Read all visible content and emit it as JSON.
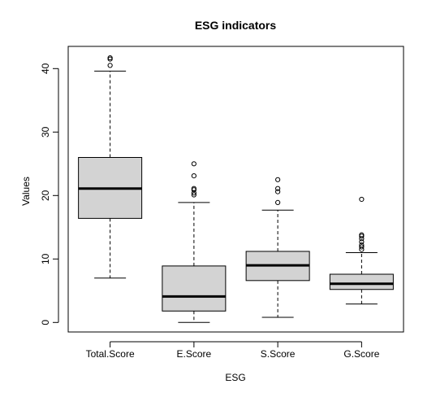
{
  "chart_data": {
    "type": "boxplot",
    "title": "ESG indicators",
    "xlabel": "ESG",
    "ylabel": "Values",
    "ylim": [
      -1.5,
      43.5
    ],
    "yticks": [
      0,
      10,
      20,
      30,
      40
    ],
    "categories": [
      "Total.Score",
      "E.Score",
      "S.Score",
      "G.Score"
    ],
    "boxes": [
      {
        "category": "Total.Score",
        "min": 7.0,
        "q1": 16.4,
        "median": 21.1,
        "q3": 26.0,
        "max": 39.6,
        "outliers": [
          40.5,
          41.5,
          41.7
        ]
      },
      {
        "category": "E.Score",
        "min": 0.0,
        "q1": 1.8,
        "median": 4.1,
        "q3": 8.9,
        "max": 18.9,
        "outliers": [
          20.1,
          20.4,
          20.9,
          21.1,
          23.1,
          25.0
        ]
      },
      {
        "category": "S.Score",
        "min": 0.8,
        "q1": 6.6,
        "median": 9.0,
        "q3": 11.2,
        "max": 17.7,
        "outliers": [
          18.9,
          20.6,
          21.1,
          22.5
        ]
      },
      {
        "category": "G.Score",
        "min": 2.9,
        "q1": 5.2,
        "median": 6.1,
        "q3": 7.6,
        "max": 11.0,
        "outliers": [
          11.5,
          11.9,
          12.2,
          12.7,
          13.2,
          13.6,
          13.8,
          19.4
        ]
      }
    ],
    "box_fill": "#d3d3d3",
    "line_color": "#000000",
    "grid": false
  }
}
